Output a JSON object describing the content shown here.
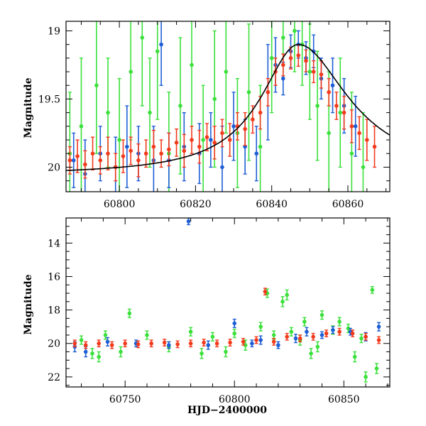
{
  "chart_data": [
    {
      "type": "scatter",
      "title": "",
      "xlabel": "",
      "ylabel": "Magnitude",
      "xlim": [
        60786,
        60871
      ],
      "ylim": [
        20.18,
        18.93
      ],
      "y_inverted": true,
      "xticks": [
        60800,
        60820,
        60840,
        60860
      ],
      "yticks": [
        19,
        19.5,
        20
      ],
      "ytick_labels": [
        "19",
        "19.5",
        "20"
      ],
      "grid": false,
      "legend": "none",
      "colors": {
        "blue": "#1f5fd6",
        "green": "#3ce03c",
        "red": "#f23a1c",
        "model": "#000000"
      },
      "model_curve": {
        "peak_x": 60847,
        "peak_mag": 19.1,
        "base_mag": 20.06,
        "rise_scale": 12,
        "decay_scale": 16,
        "x": [
          60786,
          60800,
          60810,
          60820,
          60830,
          60835,
          60840,
          60843,
          60845,
          60847,
          60849,
          60852,
          60855,
          60860,
          60865,
          60871
        ],
        "y": [
          19.98,
          19.97,
          19.94,
          19.87,
          19.7,
          19.55,
          19.34,
          19.19,
          19.12,
          19.1,
          19.13,
          19.22,
          19.33,
          19.51,
          19.66,
          19.8
        ]
      },
      "series": [
        {
          "color": "green",
          "x": [
            60787,
            60790,
            60794,
            60797,
            60800,
            60803,
            60806,
            60808,
            60810,
            60813,
            60816,
            60819,
            60822,
            60825,
            60828,
            60831,
            60834,
            60837,
            60840,
            60843,
            60846,
            60848,
            60850,
            60852,
            60855,
            60858,
            60861,
            60864
          ],
          "y": [
            19.9,
            19.7,
            19.4,
            19.6,
            19.8,
            19.3,
            19.05,
            19.6,
            19.15,
            19.9,
            19.55,
            19.25,
            19.8,
            19.5,
            19.3,
            19.75,
            19.45,
            19.85,
            19.2,
            19.05,
            19.0,
            19.1,
            19.3,
            19.55,
            19.75,
            19.6,
            19.9,
            20.0
          ],
          "err": [
            0.45,
            0.5,
            0.5,
            0.4,
            0.45,
            0.5,
            0.5,
            0.4,
            0.5,
            0.45,
            0.5,
            0.45,
            0.4,
            0.5,
            0.45,
            0.4,
            0.5,
            0.45,
            0.4,
            0.3,
            0.3,
            0.3,
            0.35,
            0.4,
            0.45,
            0.4,
            0.45,
            0.4
          ]
        },
        {
          "color": "blue",
          "x": [
            60788,
            60791,
            60795,
            60799,
            60802,
            60805,
            60809,
            60811,
            60813,
            60817,
            60821,
            60824,
            60827,
            60830,
            60833,
            60836,
            60839,
            60841,
            60843,
            60845,
            60847,
            60849,
            60851,
            60853,
            60856,
            60859,
            60862
          ],
          "y": [
            19.95,
            20.05,
            19.9,
            20.0,
            19.85,
            19.9,
            19.95,
            19.1,
            19.95,
            19.85,
            19.9,
            19.8,
            20.0,
            19.7,
            19.85,
            19.9,
            19.45,
            19.25,
            19.35,
            19.15,
            19.1,
            19.2,
            19.15,
            19.35,
            19.4,
            19.55,
            19.7
          ],
          "err": [
            0.2,
            0.25,
            0.2,
            0.22,
            0.3,
            0.2,
            0.25,
            0.3,
            0.2,
            0.25,
            0.22,
            0.2,
            0.3,
            0.25,
            0.2,
            0.2,
            0.35,
            0.2,
            0.12,
            0.12,
            0.1,
            0.12,
            0.12,
            0.15,
            0.2,
            0.2,
            0.22
          ]
        },
        {
          "color": "red",
          "x": [
            60787,
            60789,
            60791,
            60793,
            60795,
            60797,
            60799,
            60801,
            60803,
            60805,
            60807,
            60809,
            60811,
            60813,
            60815,
            60817,
            60819,
            60821,
            60823,
            60825,
            60827,
            60829,
            60831,
            60833,
            60835,
            60837,
            60839,
            60841,
            60843,
            60845,
            60847,
            60849,
            60851,
            60853,
            60855,
            60857,
            60859,
            60861,
            60863,
            60865,
            60867
          ],
          "y": [
            19.95,
            19.92,
            19.98,
            19.9,
            19.95,
            19.9,
            20.0,
            19.92,
            19.88,
            19.95,
            19.9,
            19.85,
            19.9,
            19.87,
            19.82,
            19.88,
            19.8,
            19.85,
            19.78,
            19.82,
            19.75,
            19.8,
            19.7,
            19.72,
            19.65,
            19.6,
            19.45,
            19.3,
            19.25,
            19.2,
            19.18,
            19.22,
            19.3,
            19.32,
            19.45,
            19.55,
            19.6,
            19.7,
            19.75,
            19.8,
            19.85
          ],
          "err": [
            0.1,
            0.12,
            0.1,
            0.12,
            0.1,
            0.12,
            0.1,
            0.12,
            0.1,
            0.12,
            0.1,
            0.12,
            0.1,
            0.12,
            0.1,
            0.12,
            0.1,
            0.12,
            0.1,
            0.12,
            0.1,
            0.12,
            0.1,
            0.12,
            0.1,
            0.12,
            0.1,
            0.1,
            0.08,
            0.08,
            0.08,
            0.08,
            0.08,
            0.1,
            0.1,
            0.1,
            0.12,
            0.12,
            0.12,
            0.15,
            0.15
          ]
        }
      ]
    },
    {
      "type": "scatter",
      "title": "",
      "xlabel": "HJD−2400000",
      "ylabel": "Magnitude",
      "xlim": [
        60723,
        60871
      ],
      "ylim": [
        22.6,
        12.5
      ],
      "y_inverted": true,
      "xticks": [
        60750,
        60800,
        60850
      ],
      "yticks": [
        14,
        16,
        18,
        20,
        22
      ],
      "ytick_labels": [
        "14",
        "16",
        "18",
        "20",
        "22"
      ],
      "grid": false,
      "legend": "none",
      "colors": {
        "blue": "#1f5fd6",
        "green": "#3ce03c",
        "red": "#f23a1c",
        "model": "#000000"
      },
      "series": [
        {
          "color": "green",
          "x": [
            60730,
            60735,
            60738,
            60741,
            60748,
            60752,
            60760,
            60770,
            60780,
            60785,
            60790,
            60796,
            60800,
            60805,
            60812,
            60815,
            60818,
            60822,
            60824,
            60826,
            60830,
            60832,
            60835,
            60838,
            60840,
            60845,
            60848,
            60852,
            60855,
            60858,
            60860,
            60863,
            60865
          ],
          "y": [
            19.8,
            20.6,
            20.8,
            19.5,
            20.5,
            18.2,
            19.5,
            20.2,
            19.3,
            20.6,
            19.6,
            20.5,
            19.4,
            20.1,
            19.0,
            17.0,
            19.5,
            17.5,
            17.1,
            19.3,
            19.8,
            18.7,
            20.6,
            20.2,
            18.3,
            19.2,
            18.7,
            19.1,
            20.8,
            19.7,
            22.0,
            16.8,
            21.5
          ],
          "err": [
            0.25,
            0.3,
            0.3,
            0.25,
            0.3,
            0.25,
            0.25,
            0.3,
            0.25,
            0.3,
            0.25,
            0.3,
            0.25,
            0.3,
            0.25,
            0.25,
            0.25,
            0.3,
            0.3,
            0.25,
            0.3,
            0.25,
            0.3,
            0.3,
            0.25,
            0.25,
            0.25,
            0.25,
            0.3,
            0.25,
            0.3,
            0.2,
            0.3
          ]
        },
        {
          "color": "blue",
          "x": [
            60727,
            60732,
            60742,
            60755,
            60770,
            60779,
            60788,
            60800,
            60808,
            60812,
            60820,
            60828,
            60833,
            60840,
            60845,
            60853,
            60860,
            60866
          ],
          "y": [
            20.2,
            20.5,
            19.9,
            20.0,
            20.1,
            12.7,
            20.1,
            18.8,
            20.0,
            19.8,
            20.1,
            19.7,
            19.3,
            19.5,
            19.2,
            19.3,
            19.6,
            19.0
          ],
          "err": [
            0.3,
            0.3,
            0.25,
            0.2,
            0.2,
            0.2,
            0.25,
            0.25,
            0.2,
            0.25,
            0.2,
            0.25,
            0.25,
            0.2,
            0.2,
            0.2,
            0.25,
            0.25
          ]
        },
        {
          "color": "red",
          "x": [
            60727,
            60732,
            60738,
            60744,
            60750,
            60756,
            60762,
            60768,
            60774,
            60780,
            60786,
            60792,
            60798,
            60804,
            60810,
            60814,
            60818,
            60824,
            60830,
            60836,
            60842,
            60848,
            60854,
            60860,
            60866
          ],
          "y": [
            20.0,
            20.1,
            20.0,
            20.1,
            20.0,
            20.05,
            20.0,
            19.95,
            20.05,
            20.0,
            19.95,
            20.0,
            19.95,
            19.9,
            19.8,
            16.9,
            19.9,
            19.6,
            19.7,
            19.6,
            19.4,
            19.3,
            19.4,
            19.6,
            19.8
          ],
          "err": [
            0.2,
            0.2,
            0.2,
            0.2,
            0.2,
            0.2,
            0.2,
            0.2,
            0.2,
            0.2,
            0.2,
            0.2,
            0.2,
            0.2,
            0.2,
            0.2,
            0.2,
            0.2,
            0.2,
            0.2,
            0.2,
            0.2,
            0.2,
            0.2,
            0.2
          ]
        }
      ]
    }
  ]
}
